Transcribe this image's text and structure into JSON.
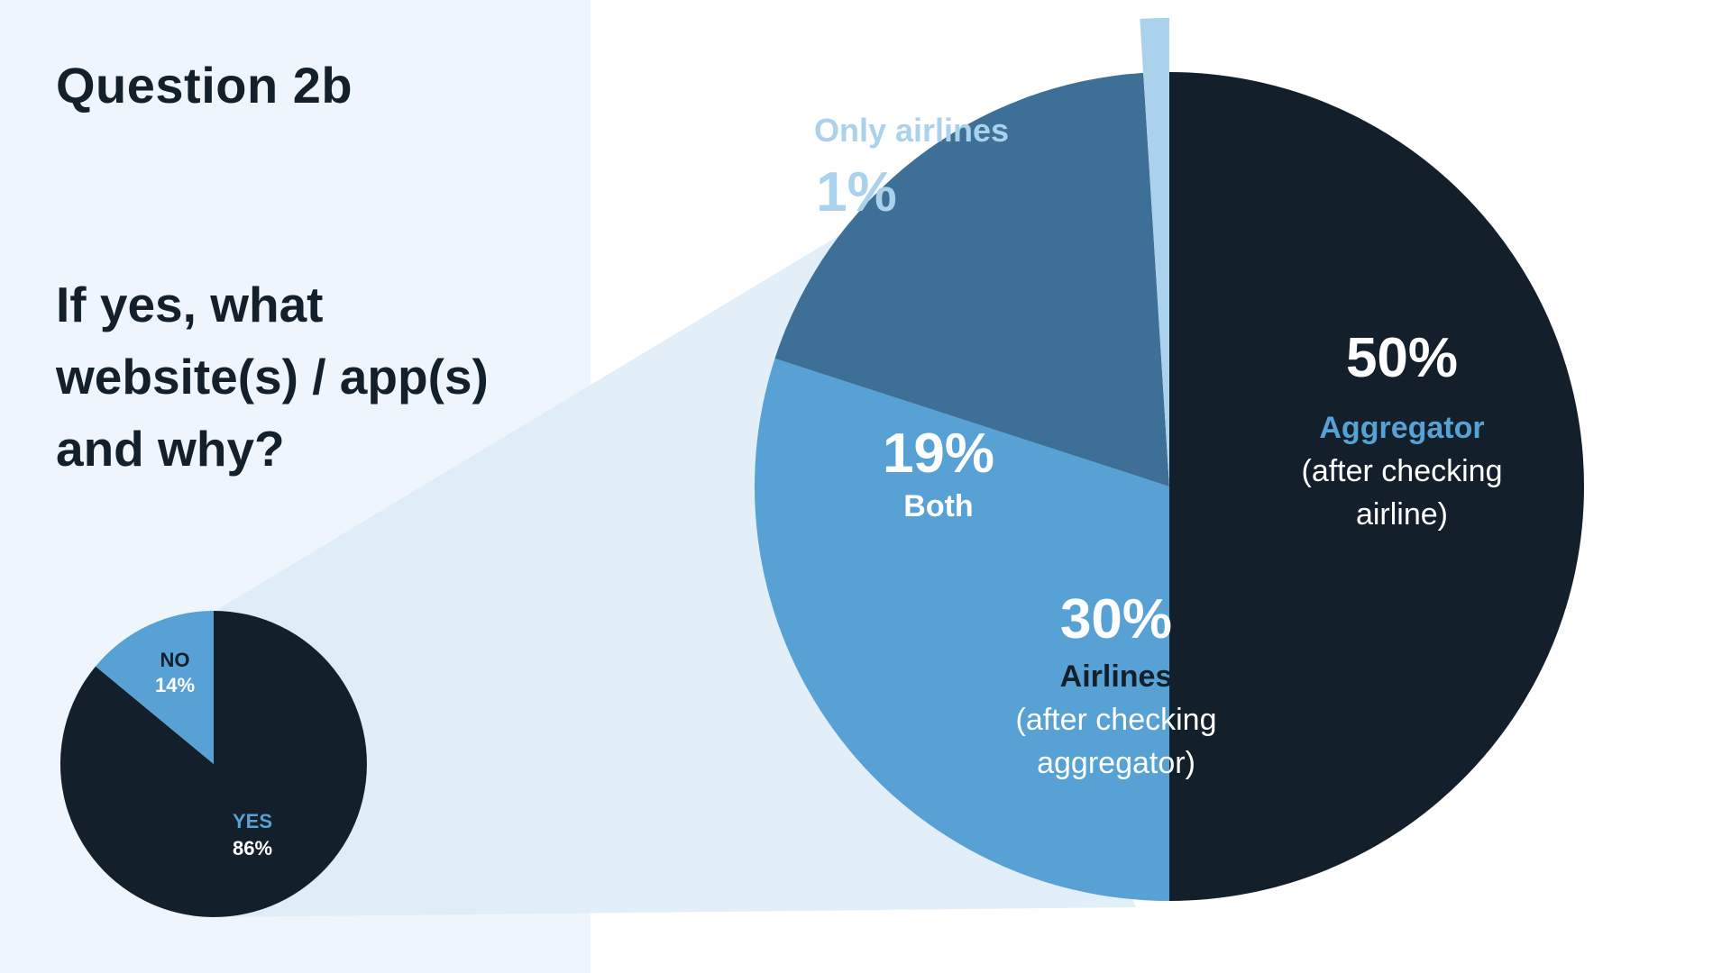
{
  "slide": {
    "title": "Question 2b",
    "question": "If yes, what website(s) / app(s) and why?"
  },
  "colors": {
    "panel_bg": "#eef5fc",
    "navy": "#13202c",
    "mid_blue": "#57a1d5",
    "steel_blue": "#3e7097",
    "light_blue": "#aad2ec",
    "wedge_fill": "#d8eaf7",
    "white": "#ffffff"
  },
  "chart_data": [
    {
      "type": "pie",
      "slices": [
        {
          "label": "YES",
          "value": 86,
          "value_label": "86%",
          "color": "#13202c"
        },
        {
          "label": "NO",
          "value": 14,
          "value_label": "14%",
          "color": "#57a1d5"
        }
      ]
    },
    {
      "type": "pie",
      "slices": [
        {
          "label": "Aggregator",
          "sublabel": "(after checking airline)",
          "value": 50,
          "value_label": "50%",
          "color": "#13202c"
        },
        {
          "label": "Airlines",
          "sublabel": "(after checking aggregator)",
          "value": 30,
          "value_label": "30%",
          "color": "#57a1d5"
        },
        {
          "label": "Both",
          "sublabel": "",
          "value": 19,
          "value_label": "19%",
          "color": "#3e7097"
        },
        {
          "label": "Only airlines",
          "sublabel": "",
          "value": 1,
          "value_label": "1%",
          "color": "#aad2ec"
        }
      ]
    }
  ]
}
